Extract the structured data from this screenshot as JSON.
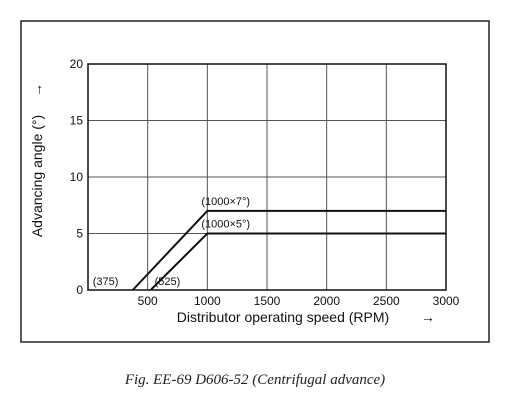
{
  "caption": "Fig. EE-69 D606-52 (Centrifugal advance)",
  "chart_data": {
    "type": "line",
    "xlabel": "Distributor operating speed (RPM)",
    "ylabel": "Advancing angle (°)",
    "xlim": [
      0,
      3000
    ],
    "ylim": [
      0,
      20
    ],
    "x_ticks": [
      500,
      1000,
      1500,
      2000,
      2500,
      3000
    ],
    "y_ticks": [
      0,
      5,
      10,
      15,
      20
    ],
    "grid": true,
    "series": [
      {
        "x": [
          375,
          1000,
          3000
        ],
        "y": [
          0,
          7,
          7
        ]
      },
      {
        "x": [
          525,
          1000,
          3000
        ],
        "y": [
          0,
          5,
          5
        ]
      }
    ],
    "annotations": [
      {
        "text": "(375)",
        "x": 375,
        "y": 0
      },
      {
        "text": "(525)",
        "x": 525,
        "y": 0
      },
      {
        "text": "(1000×7°)",
        "x": 1000,
        "y": 7
      },
      {
        "text": "(1000×5°)",
        "x": 1000,
        "y": 5
      }
    ],
    "x_arrow": "→",
    "y_arrow": "→"
  }
}
